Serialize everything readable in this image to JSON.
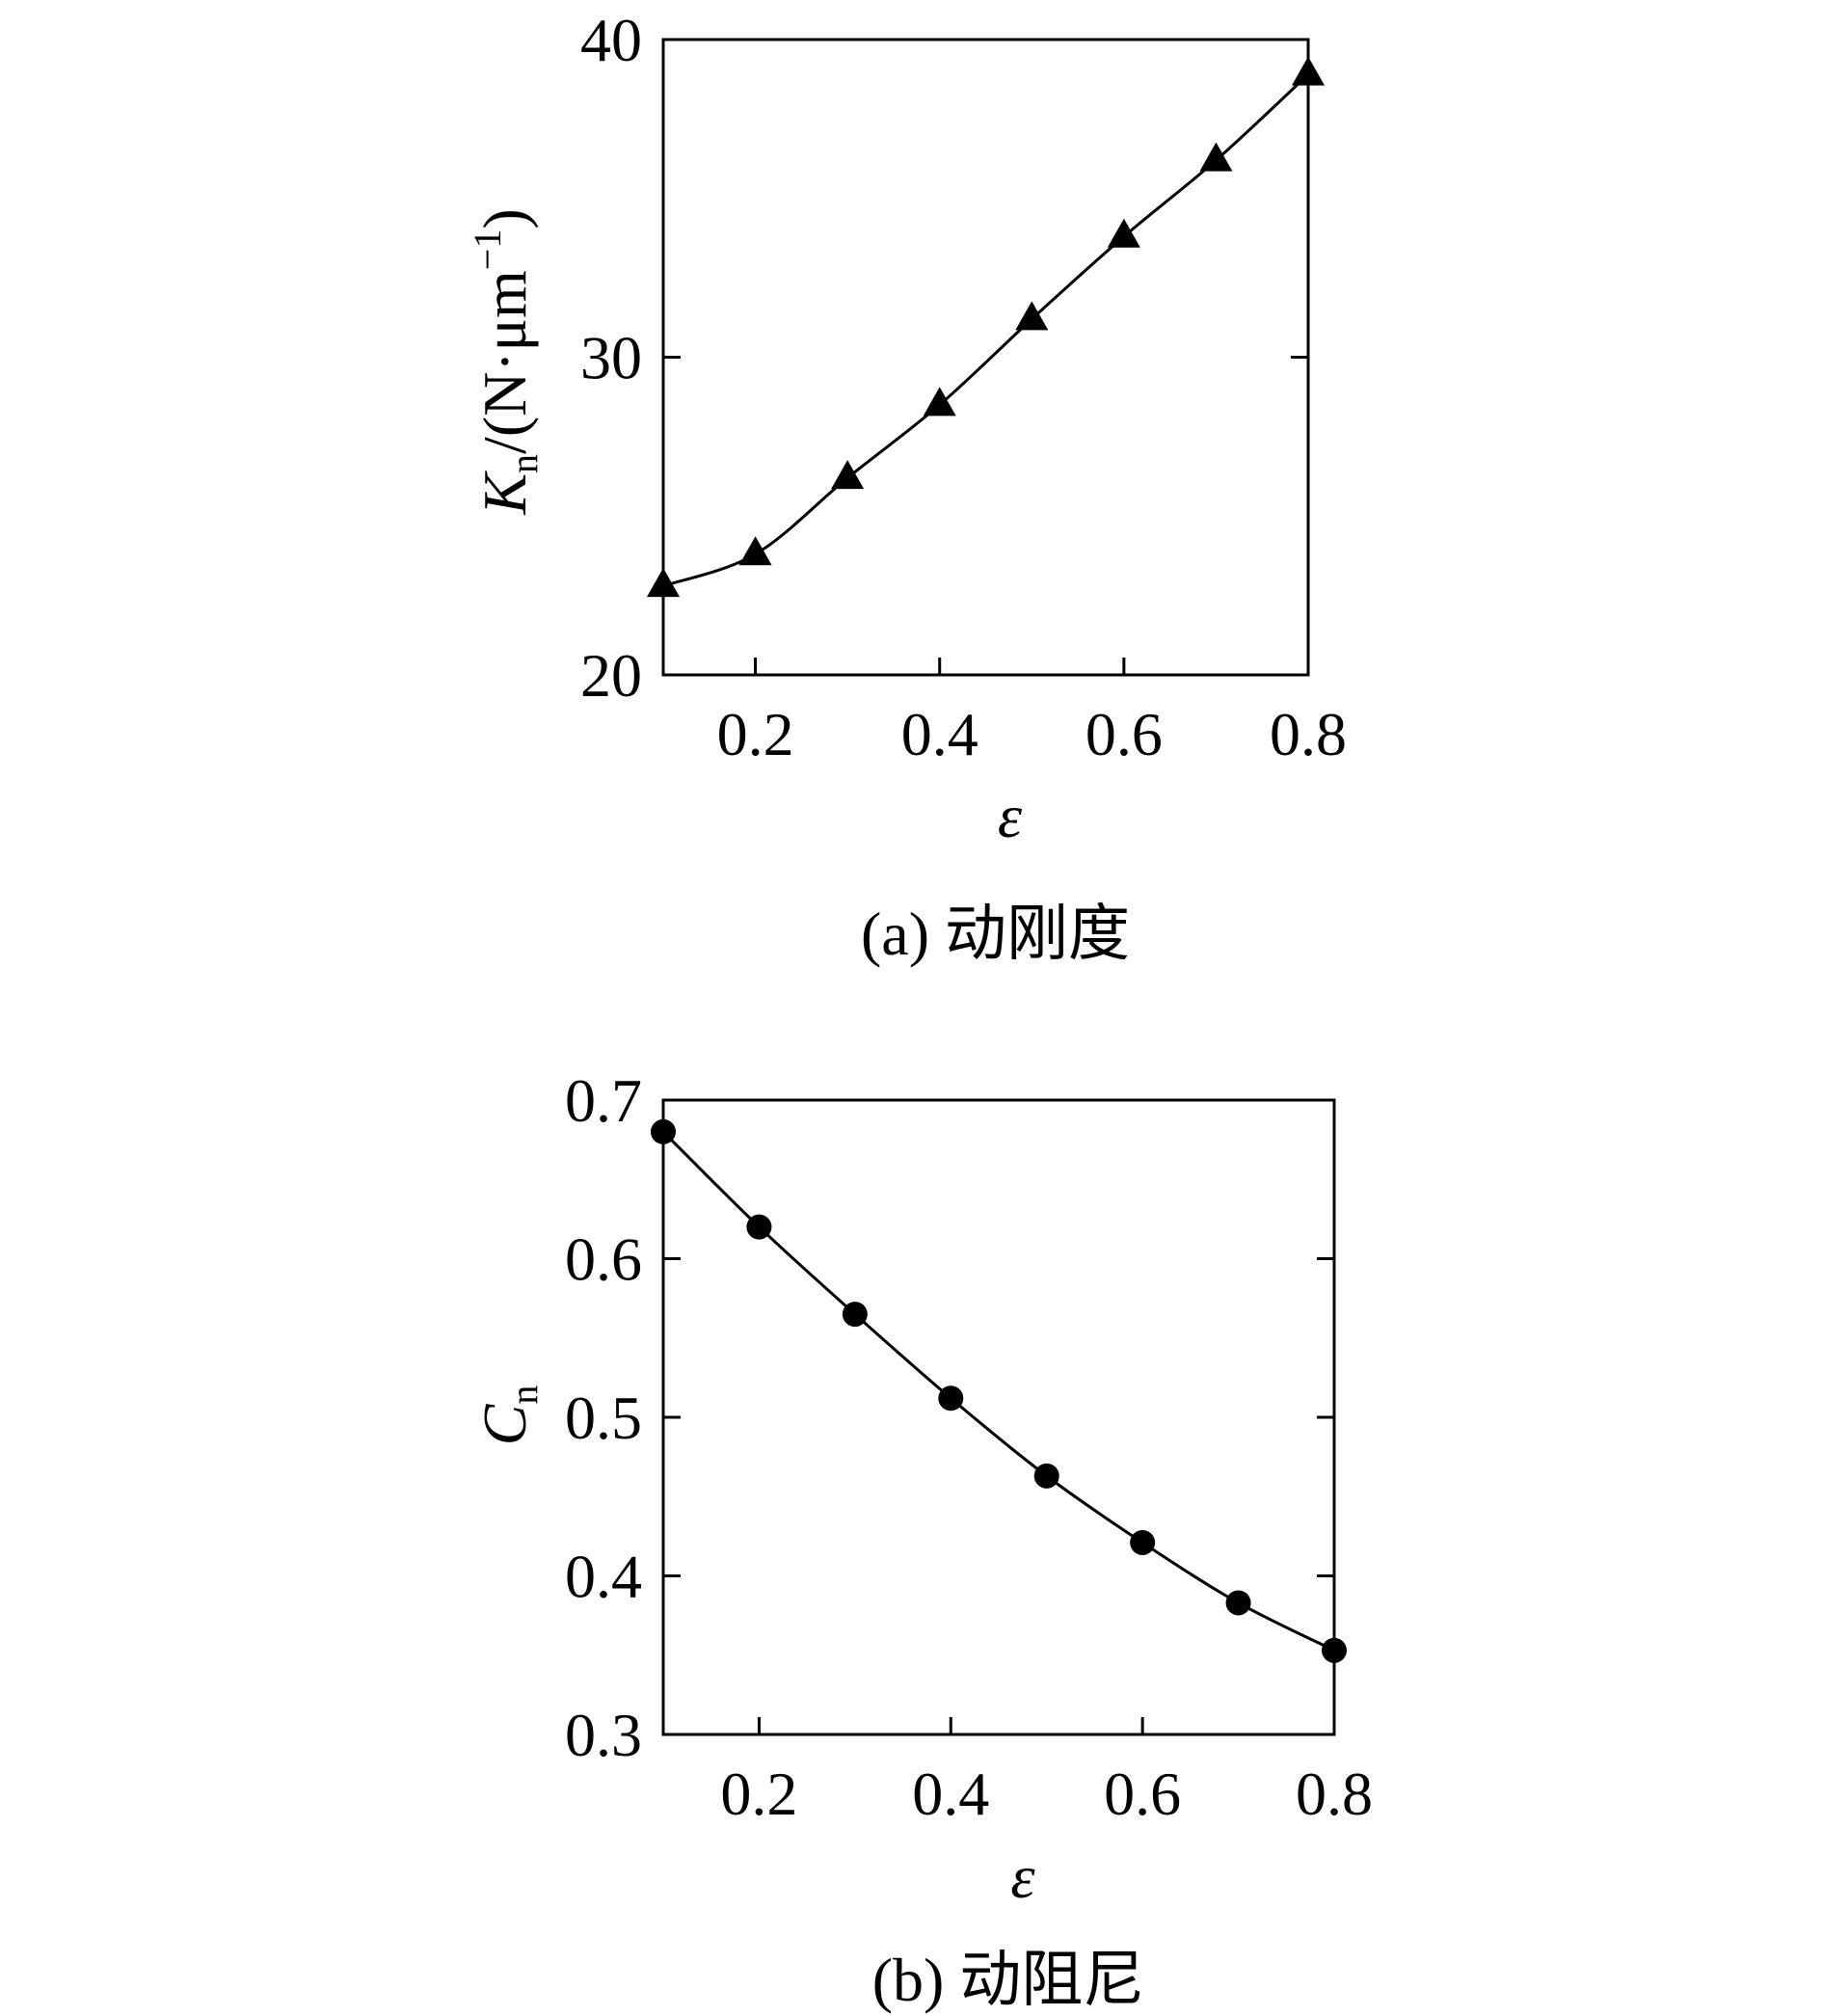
{
  "chart_data": [
    {
      "type": "line",
      "caption": "(a) 动刚度",
      "xlabel": "ε",
      "ylabel": {
        "main": "K",
        "sub": "n",
        "unit": "/(N·μm",
        "sup": "−1",
        "close": ")"
      },
      "xlim": [
        0.1,
        0.8
      ],
      "ylim": [
        20,
        40
      ],
      "xticks": [
        0.2,
        0.4,
        0.6,
        0.8
      ],
      "xtick_labels": [
        "0.2",
        "0.4",
        "0.6",
        "0.8"
      ],
      "yticks": [
        20,
        30,
        40
      ],
      "ytick_labels": [
        "20",
        "30",
        "40"
      ],
      "marker": "triangle",
      "grid": false,
      "series": [
        {
          "x": [
            0.1,
            0.2,
            0.3,
            0.4,
            0.5,
            0.6,
            0.7,
            0.8
          ],
          "values": [
            22.8,
            23.8,
            26.2,
            28.5,
            31.2,
            33.8,
            36.2,
            38.9
          ]
        }
      ]
    },
    {
      "type": "line",
      "caption": "(b) 动阻尼",
      "xlabel": "ε",
      "ylabel": {
        "main": "C",
        "sub": "n"
      },
      "xlim": [
        0.1,
        0.8
      ],
      "ylim": [
        0.3,
        0.7
      ],
      "xticks": [
        0.2,
        0.4,
        0.6,
        0.8
      ],
      "xtick_labels": [
        "0.2",
        "0.4",
        "0.6",
        "0.8"
      ],
      "yticks": [
        0.3,
        0.4,
        0.5,
        0.6,
        0.7
      ],
      "ytick_labels": [
        "0.3",
        "0.4",
        "0.5",
        "0.6",
        "0.7"
      ],
      "marker": "circle",
      "grid": false,
      "series": [
        {
          "x": [
            0.1,
            0.2,
            0.3,
            0.4,
            0.5,
            0.6,
            0.7,
            0.8
          ],
          "values": [
            0.68,
            0.62,
            0.565,
            0.512,
            0.463,
            0.421,
            0.383,
            0.353
          ]
        }
      ]
    }
  ]
}
